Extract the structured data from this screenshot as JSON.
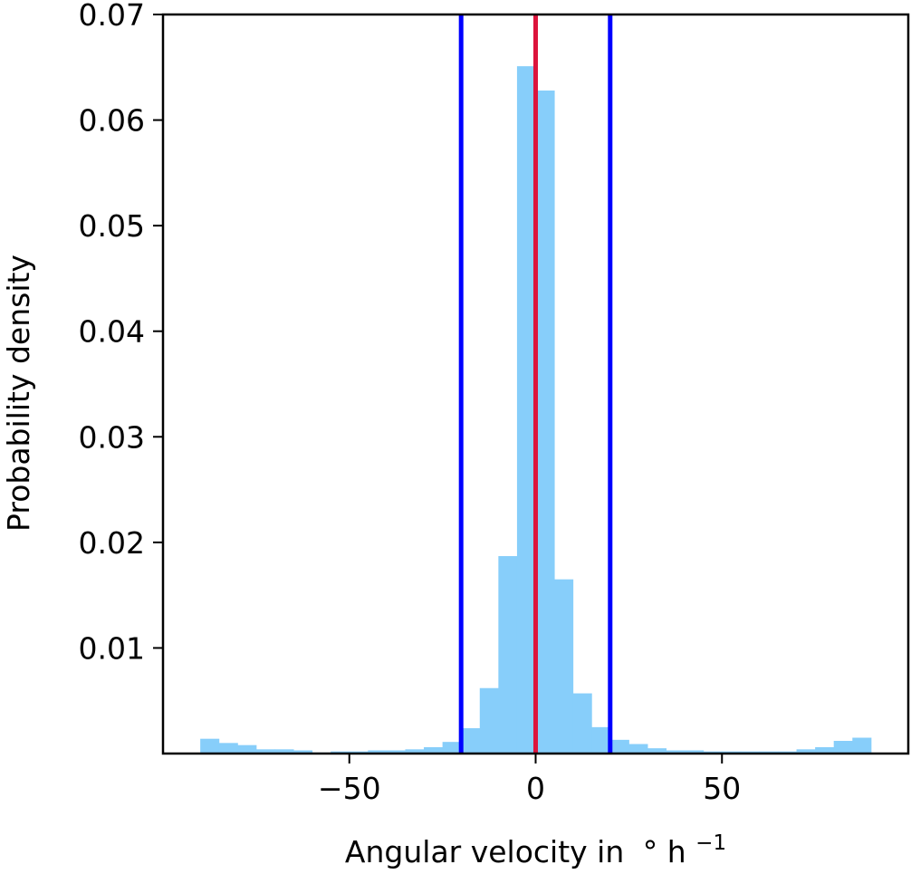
{
  "chart_data": {
    "type": "bar",
    "subtype": "histogram",
    "title": "",
    "xlabel": "Angular velocity in",
    "xlabel_unit": "° h",
    "xlabel_unit_exponent": "−1",
    "ylabel": "Probability density",
    "xlim": [
      -100,
      100
    ],
    "ylim": [
      0,
      0.07
    ],
    "bin_width": 5,
    "bin_edges_start": -90,
    "values": [
      0.0014,
      0.001,
      0.0008,
      0.0004,
      0.0004,
      0.0003,
      0.0001,
      0.0002,
      0.0002,
      0.0003,
      0.0003,
      0.0004,
      0.0006,
      0.0011,
      0.0024,
      0.0062,
      0.0187,
      0.0651,
      0.0628,
      0.0165,
      0.0057,
      0.0025,
      0.0013,
      0.0009,
      0.0005,
      0.0003,
      0.0003,
      0.0002,
      0.0002,
      0.0002,
      0.0002,
      0.0002,
      0.0004,
      0.0006,
      0.0012,
      0.0015
    ],
    "bar_color": "#87CEFA",
    "vertical_lines": [
      {
        "x": -20,
        "color": "#0000FF"
      },
      {
        "x": 0,
        "color": "#DC143C"
      },
      {
        "x": 20,
        "color": "#0000FF"
      }
    ],
    "x_ticks": [
      {
        "value": -50,
        "label": "−50"
      },
      {
        "value": 0,
        "label": "0"
      },
      {
        "value": 50,
        "label": "50"
      }
    ],
    "y_ticks": [
      {
        "value": 0.01,
        "label": "0.01"
      },
      {
        "value": 0.02,
        "label": "0.02"
      },
      {
        "value": 0.03,
        "label": "0.03"
      },
      {
        "value": 0.04,
        "label": "0.04"
      },
      {
        "value": 0.05,
        "label": "0.05"
      },
      {
        "value": 0.06,
        "label": "0.06"
      },
      {
        "value": 0.07,
        "label": "0.07"
      }
    ],
    "grid": false,
    "legend": "none"
  }
}
